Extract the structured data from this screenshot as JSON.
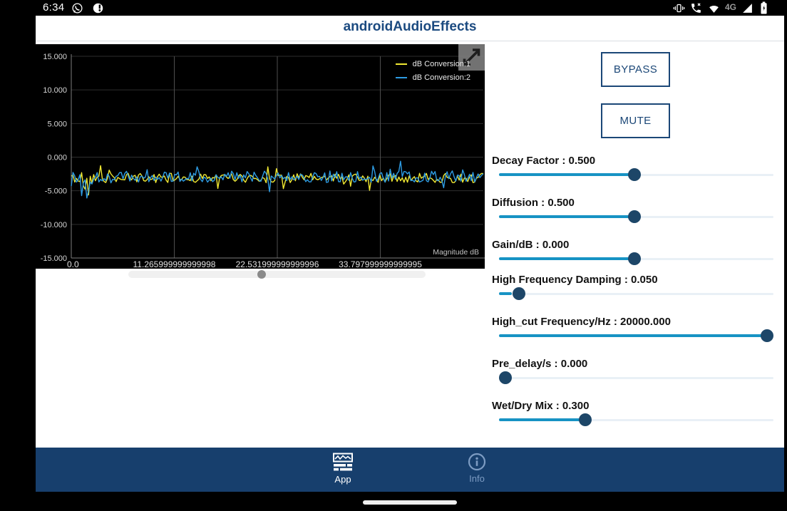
{
  "status_bar": {
    "time": "6:34",
    "network_type": "4G",
    "icons_left": [
      "whatsapp",
      "data-usage"
    ],
    "icons_right": [
      "vibrate",
      "wifi-calling",
      "wifi",
      "signal",
      "battery-charging"
    ]
  },
  "header": {
    "title": "androidAudioEffects"
  },
  "controls": {
    "bypass_label": "BYPASS",
    "mute_label": "MUTE",
    "sliders": [
      {
        "name": "Decay Factor",
        "label": "Decay Factor : 0.500",
        "value": 0.5,
        "percent": 49.4
      },
      {
        "name": "Diffusion",
        "label": "Diffusion : 0.500",
        "value": 0.5,
        "percent": 49.4
      },
      {
        "name": "Gain/dB",
        "label": "Gain/dB : 0.000",
        "value": 0.0,
        "percent": 49.4
      },
      {
        "name": "High Frequency Damping",
        "label": "High Frequency Damping : 0.050",
        "value": 0.05,
        "percent": 5.2
      },
      {
        "name": "High_cut Frequency/Hz",
        "label": "High_cut Frequency/Hz : 20000.000",
        "value": 20000.0,
        "percent": 100
      },
      {
        "name": "Pre_delay/s",
        "label": "Pre_delay/s : 0.000",
        "value": 0.0,
        "percent": 0
      },
      {
        "name": "Wet/Dry Mix",
        "label": "Wet/Dry Mix : 0.300",
        "value": 0.3,
        "percent": 30.6
      }
    ]
  },
  "chart_data": {
    "type": "line",
    "title": "",
    "xlabel": "",
    "ylabel": "",
    "xlim": [
      0,
      45.064
    ],
    "ylim": [
      -15,
      15
    ],
    "x_ticks": [
      {
        "value": 0,
        "label": "0.0"
      },
      {
        "value": 11.265999999999998,
        "label": "11.265999999999998"
      },
      {
        "value": 22.531999999999996,
        "label": "22.531999999999996"
      },
      {
        "value": 33.797999999999995,
        "label": "33.797999999999995"
      }
    ],
    "y_ticks": [
      "15.000",
      "10.000",
      "5.000",
      "0.000",
      "-5.000",
      "-10.000",
      "-15.000"
    ],
    "grid": true,
    "legend_position": "top-right",
    "annotation": "Magnitude dB",
    "background": "#000000",
    "series": [
      {
        "name": "dB Conversion:1",
        "color": "#f0e832",
        "baseline": -3.1,
        "noise_amplitude": 0.7,
        "spike_chance": 0.1,
        "spike_scale": 2.0,
        "burst_until_x": 2.4,
        "burst_multiplier": 1.9,
        "points": 240,
        "seed": 42,
        "synthetic_noise": true
      },
      {
        "name": "dB Conversion:2",
        "color": "#2e9ce3",
        "baseline": -2.9,
        "noise_amplitude": 0.85,
        "spike_chance": 0.12,
        "spike_scale": 1.9,
        "burst_until_x": 2.4,
        "burst_multiplier": 2.6,
        "points": 240,
        "seed": 1337,
        "synthetic_noise": true
      }
    ],
    "pan_scrollbar": {
      "thumb_percent": 44.7
    }
  },
  "nav": {
    "items": [
      {
        "label": "App",
        "active": true,
        "icon": "app-chart-icon"
      },
      {
        "label": "Info",
        "active": false,
        "icon": "info-icon"
      }
    ]
  },
  "colors": {
    "accent": "#1b4777",
    "nav_bg": "#173f6d",
    "nav_inactive": "#7d9cc3",
    "slider_fill": "#1793c4",
    "slider_thumb": "#1d4668",
    "slider_track": "#e9f0f6",
    "chart_bg": "#000000",
    "series_1": "#f0e832",
    "series_2": "#2e9ce3"
  }
}
